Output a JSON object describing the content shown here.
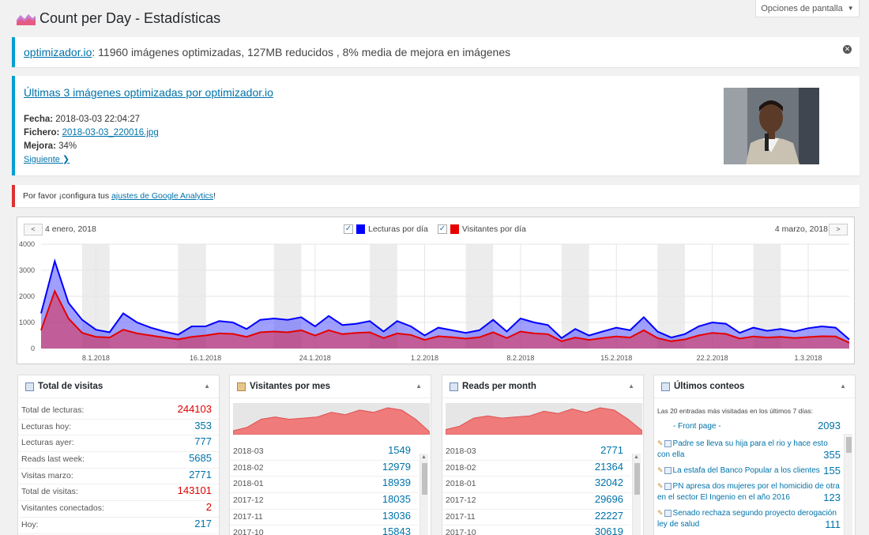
{
  "header": {
    "title": "Count per Day - Estadísticas",
    "screen_options": "Opciones de pantalla"
  },
  "notice_optimizer": {
    "link": "optimizador.io",
    "text": ": 11960 imágenes optimizadas, 127MB reducidos , 8% media de mejora en imágenes"
  },
  "notice_last": {
    "heading": "Últimas 3 imágenes optimizadas por optimizador.io",
    "fecha_label": "Fecha:",
    "fecha_value": "2018-03-03 22:04:27",
    "fichero_label": "Fichero:",
    "fichero_value": "2018-03-03_220016.jpg",
    "mejora_label": "Mejora:",
    "mejora_value": "34%",
    "next_label": "Siguiente ❯"
  },
  "notice_ga": {
    "before": "Por favor ¡configura tus ",
    "link": "ajustes de Google Analytics",
    "after": "!"
  },
  "chart_nav": {
    "prev": "<",
    "next": ">",
    "start_date": "4 enero, 2018",
    "end_date": "4 marzo, 2018"
  },
  "colors": {
    "lecturas": "#0000ff",
    "visitantes": "#e60000"
  },
  "chart_data": {
    "type": "area",
    "legend": [
      {
        "label": "Lecturas por día",
        "color": "#0000ff",
        "checked": true
      },
      {
        "label": "Visitantes por día",
        "color": "#e60000",
        "checked": true
      }
    ],
    "ylim": [
      0,
      4000
    ],
    "y_ticks": [
      "0",
      "1000",
      "2000",
      "3000",
      "4000"
    ],
    "x_ticks": [
      "8.1.2018",
      "16.1.2018",
      "24.1.2018",
      "1.2.2018",
      "8.2.2018",
      "15.2.2018",
      "22.2.2018",
      "1.3.2018"
    ],
    "series": [
      {
        "name": "Lecturas por día",
        "values": [
          1350,
          3350,
          1750,
          1100,
          720,
          620,
          1350,
          1000,
          800,
          650,
          530,
          850,
          850,
          1050,
          1000,
          750,
          1100,
          1150,
          1100,
          1200,
          850,
          1250,
          900,
          950,
          1050,
          650,
          1050,
          850,
          500,
          800,
          700,
          600,
          700,
          1100,
          650,
          1150,
          1000,
          900,
          400,
          750,
          500,
          650,
          800,
          700,
          1200,
          650,
          420,
          550,
          850,
          1000,
          950,
          600,
          800,
          680,
          750,
          650,
          780,
          850,
          800,
          350
        ]
      },
      {
        "name": "Visitantes por día",
        "values": [
          700,
          2200,
          1150,
          600,
          450,
          420,
          720,
          580,
          500,
          420,
          350,
          450,
          500,
          580,
          560,
          450,
          620,
          650,
          620,
          700,
          500,
          700,
          550,
          600,
          620,
          400,
          580,
          520,
          330,
          470,
          430,
          380,
          430,
          620,
          400,
          650,
          580,
          550,
          280,
          420,
          330,
          400,
          460,
          420,
          700,
          400,
          280,
          350,
          500,
          600,
          560,
          380,
          460,
          420,
          450,
          400,
          440,
          470,
          460,
          220
        ]
      }
    ]
  },
  "widgets": {
    "total": {
      "title": "Total de visitas",
      "rows": [
        {
          "label": "Total de lecturas:",
          "value": "244103",
          "red": true
        },
        {
          "label": "Lecturas hoy:",
          "value": "353",
          "red": false
        },
        {
          "label": "Lecturas ayer:",
          "value": "777",
          "red": false
        },
        {
          "label": "Reads last week:",
          "value": "5685",
          "red": false
        },
        {
          "label": "Visitas marzo:",
          "value": "2771",
          "red": false
        },
        {
          "label": "Total de visitas:",
          "value": "143101",
          "red": true
        },
        {
          "label": "Visitantes conectados:",
          "value": "2",
          "red": true
        },
        {
          "label": "Hoy:",
          "value": "217",
          "red": false
        }
      ]
    },
    "visitantes_mes": {
      "title": "Visitantes por mes",
      "sparkline": [
        2,
        5,
        12,
        14,
        12,
        13,
        14,
        18,
        16,
        20,
        18,
        22,
        20,
        12,
        1
      ],
      "rows": [
        {
          "label": "2018-03",
          "value": "1549"
        },
        {
          "label": "2018-02",
          "value": "12979"
        },
        {
          "label": "2018-01",
          "value": "18939"
        },
        {
          "label": "2017-12",
          "value": "18035"
        },
        {
          "label": "2017-11",
          "value": "13036"
        },
        {
          "label": "2017-10",
          "value": "15843"
        }
      ]
    },
    "reads_month": {
      "title": "Reads per month",
      "sparkline": [
        3,
        6,
        13,
        15,
        13,
        14,
        15,
        19,
        17,
        21,
        18,
        22,
        20,
        12,
        2
      ],
      "rows": [
        {
          "label": "2018-03",
          "value": "2771"
        },
        {
          "label": "2018-02",
          "value": "21364"
        },
        {
          "label": "2018-01",
          "value": "32042"
        },
        {
          "label": "2017-12",
          "value": "29696"
        },
        {
          "label": "2017-11",
          "value": "22227"
        },
        {
          "label": "2017-10",
          "value": "30619"
        }
      ]
    },
    "ultimos": {
      "title": "Últimos conteos",
      "intro": "Las 20 entradas más visitadas en los últimos 7 días:",
      "front": {
        "label": "- Front page -",
        "value": "2093"
      },
      "items": [
        {
          "label": "Padre se lleva su hija para el rio y hace esto con ella",
          "value": "355"
        },
        {
          "label": "La estafa del Banco Popular a los clientes",
          "value": "155"
        },
        {
          "label": "PN apresa dos mujeres por el homicidio de otra en el sector El Ingenio en el año 2016",
          "value": "123"
        },
        {
          "label": "Senado rechaza segundo proyecto derogación ley de salud",
          "value": "111"
        }
      ]
    }
  }
}
